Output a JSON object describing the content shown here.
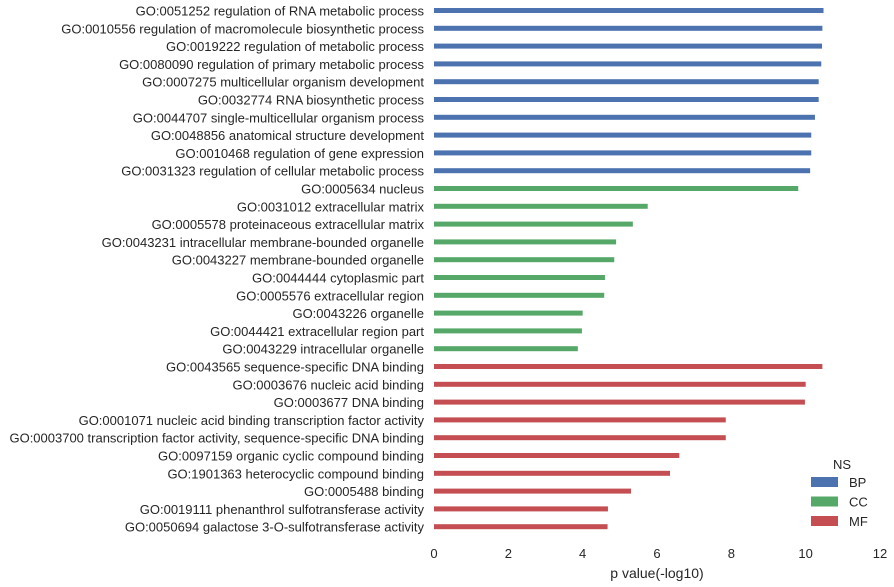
{
  "chart_data": {
    "type": "bar",
    "orientation": "horizontal",
    "xlabel": "p value(-log10)",
    "xlim": [
      0,
      12
    ],
    "xticks": [
      "0",
      "2",
      "4",
      "6",
      "8",
      "10",
      "12"
    ],
    "grid": false,
    "legend": {
      "title": "NS",
      "placement": "lower-right",
      "entries": [
        {
          "name": "BP",
          "color": "#4c72b0"
        },
        {
          "name": "CC",
          "color": "#55a868"
        },
        {
          "name": "MF",
          "color": "#c44e52"
        }
      ]
    },
    "categories": [
      "GO:0051252 regulation of RNA metabolic process",
      "GO:0010556 regulation of macromolecule biosynthetic process",
      "GO:0019222 regulation of metabolic process",
      "GO:0080090 regulation of primary metabolic process",
      "GO:0007275 multicellular organism development",
      "GO:0032774 RNA biosynthetic process",
      "GO:0044707 single-multicellular organism process",
      "GO:0048856 anatomical structure development",
      "GO:0010468 regulation of gene expression",
      "GO:0031323 regulation of cellular metabolic process",
      "GO:0005634 nucleus",
      "GO:0031012 extracellular matrix",
      "GO:0005578 proteinaceous extracellular matrix",
      "GO:0043231 intracellular membrane-bounded organelle",
      "GO:0043227 membrane-bounded organelle",
      "GO:0044444 cytoplasmic part",
      "GO:0005576 extracellular region",
      "GO:0043226 organelle",
      "GO:0044421 extracellular region part",
      "GO:0043229 intracellular organelle",
      "GO:0043565 sequence-specific DNA binding",
      "GO:0003676 nucleic acid binding",
      "GO:0003677 DNA binding",
      "GO:0001071 nucleic acid binding transcription factor activity",
      "GO:0003700 transcription factor activity, sequence-specific DNA binding",
      "GO:0097159 organic cyclic compound binding",
      "GO:1901363 heterocyclic compound binding",
      "GO:0005488 binding",
      "GO:0019111 phenanthrol sulfotransferase activity",
      "GO:0050694 galactose 3-O-sulfotransferase activity"
    ],
    "groups": [
      "BP",
      "BP",
      "BP",
      "BP",
      "BP",
      "BP",
      "BP",
      "BP",
      "BP",
      "BP",
      "CC",
      "CC",
      "CC",
      "CC",
      "CC",
      "CC",
      "CC",
      "CC",
      "CC",
      "CC",
      "MF",
      "MF",
      "MF",
      "MF",
      "MF",
      "MF",
      "MF",
      "MF",
      "MF",
      "MF"
    ],
    "values": [
      10.48,
      10.45,
      10.44,
      10.42,
      10.35,
      10.35,
      10.25,
      10.15,
      10.15,
      10.12,
      9.8,
      5.75,
      5.35,
      4.9,
      4.85,
      4.6,
      4.58,
      4.0,
      3.98,
      3.87,
      10.45,
      10.0,
      9.98,
      7.85,
      7.85,
      6.6,
      6.35,
      5.3,
      4.68,
      4.67
    ]
  }
}
